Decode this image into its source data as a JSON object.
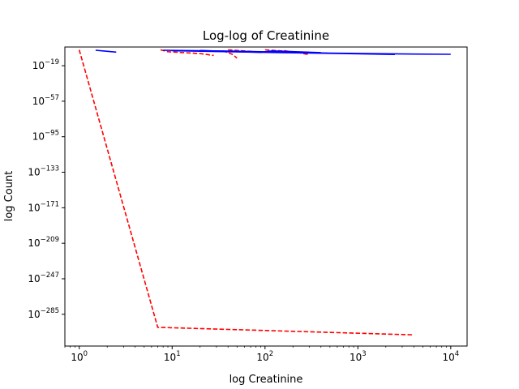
{
  "chart_data": {
    "type": "line",
    "title": "Log-log of Creatinine",
    "xlabel": "log Creatinine",
    "ylabel": "log Count",
    "x_scale": "log",
    "y_scale": "log",
    "xlim": [
      0.7,
      15000
    ],
    "ylim_exponent": [
      -319,
      1
    ],
    "x_ticks": [
      {
        "base": "10",
        "exp": "0",
        "value": 1
      },
      {
        "base": "10",
        "exp": "1",
        "value": 10
      },
      {
        "base": "10",
        "exp": "2",
        "value": 100
      },
      {
        "base": "10",
        "exp": "3",
        "value": 1000
      },
      {
        "base": "10",
        "exp": "4",
        "value": 10000
      }
    ],
    "y_ticks": [
      {
        "base": "10",
        "exp": "−19",
        "value": -19
      },
      {
        "base": "10",
        "exp": "−57",
        "value": -57
      },
      {
        "base": "10",
        "exp": "−95",
        "value": -95
      },
      {
        "base": "10",
        "exp": "−133",
        "value": -133
      },
      {
        "base": "10",
        "exp": "−171",
        "value": -171
      },
      {
        "base": "10",
        "exp": "−209",
        "value": -209
      },
      {
        "base": "10",
        "exp": "−247",
        "value": -247
      },
      {
        "base": "10",
        "exp": "−285",
        "value": -285
      }
    ],
    "grid": false,
    "legend": "none",
    "series": [
      {
        "color": "#ff0000",
        "style": "dashed",
        "segments": [
          [
            [
              1.0,
              -2.0
            ],
            [
              7.0,
              -299.0
            ],
            [
              4000,
              -307.0
            ]
          ],
          [
            [
              7.5,
              -2.0
            ],
            [
              9.0,
              -4.0
            ],
            [
              20,
              -6.0
            ],
            [
              28,
              -8.0
            ]
          ],
          [
            [
              35,
              -3.0
            ],
            [
              45,
              -7.0
            ],
            [
              50,
              -11.0
            ]
          ],
          [
            [
              40,
              -2.0
            ],
            [
              55,
              -3.0
            ],
            [
              80,
              -4.0
            ],
            [
              90,
              -5.0
            ]
          ],
          [
            [
              100,
              -2.0
            ],
            [
              140,
              -3.0
            ],
            [
              200,
              -4.0
            ],
            [
              300,
              -6.0
            ]
          ],
          [
            [
              160,
              -3.0
            ],
            [
              230,
              -5.0
            ],
            [
              290,
              -7.0
            ]
          ]
        ]
      },
      {
        "color": "#0000ff",
        "style": "solid",
        "segments": [
          [
            [
              1.5,
              -2.5
            ],
            [
              2.5,
              -4.5
            ]
          ],
          [
            [
              8.0,
              -2.5
            ],
            [
              50,
              -3.5
            ],
            [
              500,
              -5.5
            ],
            [
              3000,
              -6.5
            ],
            [
              10000,
              -6.8
            ]
          ],
          [
            [
              10,
              -3.0
            ],
            [
              40,
              -4.0
            ],
            [
              150,
              -5.0
            ],
            [
              700,
              -6.0
            ],
            [
              2500,
              -7.0
            ]
          ],
          [
            [
              20,
              -2.7
            ],
            [
              90,
              -4.7
            ],
            [
              120,
              -3.2
            ],
            [
              400,
              -5.0
            ]
          ]
        ]
      }
    ]
  }
}
